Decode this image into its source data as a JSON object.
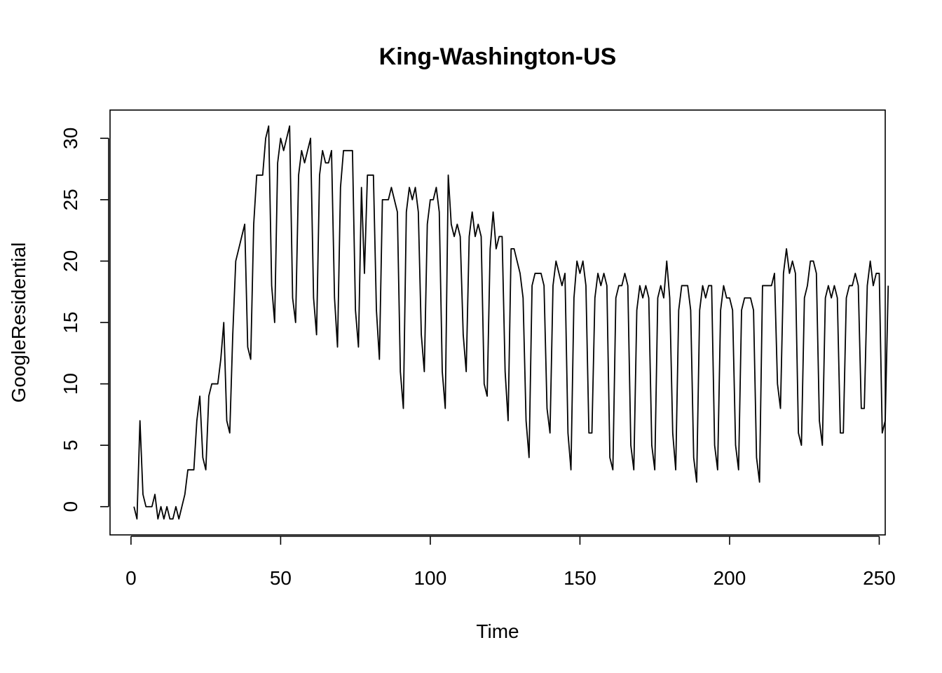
{
  "chart_data": {
    "type": "line",
    "title": "King-Washington-US",
    "xlabel": "Time",
    "ylabel": "GoogleResidential",
    "xlim": [
      -7,
      252
    ],
    "ylim": [
      -2.3,
      32.3
    ],
    "xticks": [
      0,
      50,
      100,
      150,
      200,
      250
    ],
    "yticks": [
      0,
      5,
      10,
      15,
      20,
      25,
      30
    ],
    "grid": false,
    "series": [
      {
        "x_start": 1,
        "values": [
          0,
          -1,
          7,
          1,
          0,
          0,
          0,
          1,
          -1,
          0,
          -1,
          0,
          -1,
          -1,
          0,
          -1,
          0,
          1,
          3,
          3,
          3,
          7,
          9,
          4,
          3,
          9,
          10,
          10,
          10,
          12,
          15,
          7,
          6,
          14,
          20,
          21,
          22,
          23,
          13,
          12,
          23,
          27,
          27,
          27,
          30,
          31,
          18,
          15,
          28,
          30,
          29,
          30,
          31,
          17,
          15,
          27,
          29,
          28,
          29,
          30,
          17,
          14,
          27,
          29,
          28,
          28,
          29,
          17,
          13,
          26,
          29,
          29,
          29,
          29,
          16,
          13,
          26,
          19,
          27,
          27,
          27,
          16,
          12,
          25,
          25,
          25,
          26,
          25,
          24,
          11,
          8,
          24,
          26,
          25,
          26,
          24,
          14,
          11,
          23,
          25,
          25,
          26,
          24,
          11,
          8,
          27,
          23,
          22,
          23,
          22,
          14,
          11,
          22,
          24,
          22,
          23,
          22,
          10,
          9,
          21,
          24,
          21,
          22,
          22,
          11,
          7,
          21,
          21,
          20,
          19,
          17,
          7,
          4,
          18,
          19,
          19,
          19,
          18,
          8,
          6,
          18,
          20,
          19,
          18,
          19,
          6,
          3,
          17,
          20,
          19,
          20,
          18,
          6,
          6,
          17,
          19,
          18,
          19,
          18,
          4,
          3,
          17,
          18,
          18,
          19,
          18,
          5,
          3,
          16,
          18,
          17,
          18,
          17,
          5,
          3,
          17,
          18,
          17,
          20,
          17,
          6,
          3,
          16,
          18,
          18,
          18,
          16,
          4,
          2,
          16,
          18,
          17,
          18,
          18,
          5,
          3,
          16,
          18,
          17,
          17,
          16,
          5,
          3,
          16,
          17,
          17,
          17,
          16,
          4,
          2,
          18,
          18,
          18,
          18,
          19,
          10,
          8,
          19,
          21,
          19,
          20,
          19,
          6,
          5,
          17,
          18,
          20,
          20,
          19,
          7,
          5,
          17,
          18,
          17,
          18,
          17,
          6,
          6,
          17,
          18,
          18,
          19,
          18,
          8,
          8,
          18,
          20,
          18,
          19,
          19,
          6,
          7,
          18
        ]
      }
    ]
  }
}
